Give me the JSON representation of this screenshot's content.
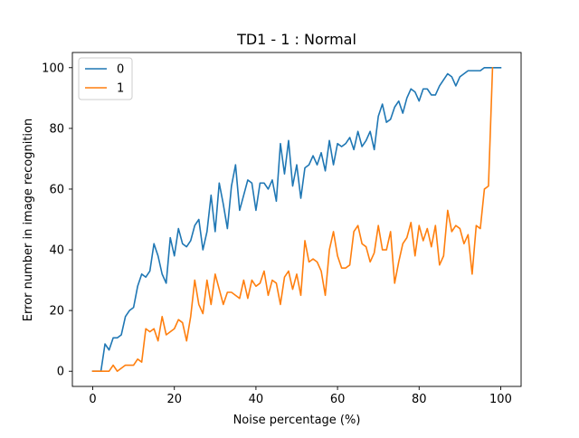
{
  "chart_data": {
    "type": "line",
    "title": "TD1 - 1 : Normal",
    "xlabel": "Noise percentage (%)",
    "ylabel": "Error number in image recognition",
    "xlim": [
      -5,
      105
    ],
    "ylim": [
      -5,
      105
    ],
    "x_ticks": [
      0,
      20,
      40,
      60,
      80,
      100
    ],
    "y_ticks": [
      0,
      20,
      40,
      60,
      80,
      100
    ],
    "grid": false,
    "legend_position": "top-left",
    "series": [
      {
        "name": "0",
        "color": "#1f77b4",
        "values": [
          0,
          0,
          0,
          9,
          7,
          11,
          11,
          12,
          18,
          20,
          21,
          28,
          32,
          31,
          33,
          42,
          38,
          32,
          29,
          44,
          38,
          47,
          42,
          41,
          43,
          48,
          50,
          40,
          46,
          58,
          46,
          62,
          55,
          47,
          61,
          68,
          53,
          58,
          63,
          62,
          53,
          62,
          62,
          60,
          63,
          56,
          75,
          65,
          76,
          61,
          68,
          57,
          67,
          68,
          71,
          68,
          72,
          66,
          76,
          68,
          75,
          74,
          75,
          77,
          73,
          79,
          74,
          76,
          79,
          73,
          84,
          88,
          82,
          83,
          87,
          89,
          85,
          90,
          93,
          92,
          89,
          93,
          93,
          91,
          91,
          94,
          96,
          98,
          97,
          94,
          97,
          98,
          99,
          99,
          99,
          99,
          100,
          100,
          100,
          100,
          100
        ]
      },
      {
        "name": "1",
        "color": "#ff7f0e",
        "values": [
          0,
          0,
          0,
          0,
          0,
          2,
          0,
          1,
          2,
          2,
          2,
          4,
          3,
          14,
          13,
          14,
          10,
          18,
          12,
          13,
          14,
          17,
          16,
          10,
          18,
          30,
          22,
          19,
          30,
          22,
          32,
          27,
          22,
          26,
          26,
          25,
          24,
          30,
          24,
          30,
          28,
          29,
          33,
          25,
          30,
          29,
          22,
          31,
          33,
          27,
          32,
          25,
          43,
          36,
          37,
          36,
          33,
          25,
          40,
          46,
          38,
          34,
          34,
          35,
          46,
          48,
          42,
          41,
          36,
          39,
          48,
          40,
          40,
          46,
          29,
          36,
          42,
          44,
          49,
          38,
          48,
          43,
          47,
          41,
          48,
          35,
          38,
          53,
          46,
          48,
          47,
          42,
          45,
          32,
          48,
          47,
          60,
          61,
          100
        ]
      }
    ]
  }
}
